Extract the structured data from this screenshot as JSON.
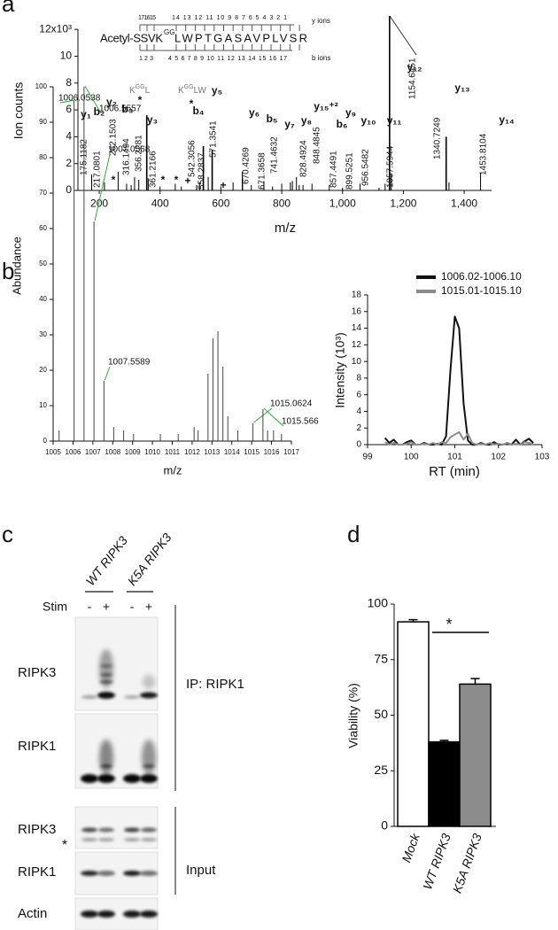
{
  "panel_labels": [
    "a",
    "b",
    "c",
    "d"
  ],
  "chart_data": [
    {
      "type": "stem",
      "xlabel": "m/z",
      "ylabel": "Ion counts",
      "xlim": [
        130,
        1490
      ],
      "ylim": [
        0,
        13
      ],
      "xticks": [
        200,
        400,
        600,
        800,
        {
          "value": 1000,
          "label": "1,000"
        },
        {
          "value": 1200,
          "label": "1,200"
        },
        {
          "value": 1400,
          "label": "1,400"
        }
      ],
      "yticks": [
        0,
        2,
        4,
        6,
        8,
        10,
        {
          "value": 12,
          "label": "12x10³"
        }
      ],
      "color": "#000000",
      "series": [
        {
          "labeled": true,
          "x": [
            175.1182,
            217.0801,
            262.1503,
            316.1494,
            356.2281,
            361.2166,
            542.3056,
            558.2837,
            571.3541,
            670.4269,
            671.3658,
            741.4632,
            828.4924,
            848.4845,
            857.4491,
            899.5251,
            956.5482,
            1057.5944,
            1154.6451,
            1340.7249,
            1453.8104
          ],
          "values": [
            1.2,
            0.6,
            1.4,
            1.0,
            5.6,
            0.9,
            3.3,
            1.0,
            3.0,
            1.4,
            0.9,
            0.7,
            0.6,
            1.0,
            0.4,
            0.5,
            0.4,
            0.5,
            13,
            4.0,
            1.3
          ]
        },
        {
          "labeled": false,
          "x": [
            290,
            305,
            330,
            400,
            450,
            470,
            520,
            530,
            600,
            640,
            700,
            770,
            800,
            835,
            870,
            1000,
            1120,
            1140,
            1160,
            1350
          ],
          "values": [
            0.5,
            0.4,
            0.8,
            0.3,
            0.5,
            0.3,
            0.4,
            0.6,
            0.3,
            0.6,
            0.4,
            0.3,
            0.5,
            0.7,
            0.4,
            0.2,
            0.2,
            0.5,
            1.2,
            0.6
          ]
        }
      ],
      "ion_labels": [
        "y₁",
        "b₂",
        "y₂",
        "b₃",
        "y₃",
        "b₄",
        "y₅",
        "y₆",
        "b₅",
        "y₇",
        "y₈",
        "y₁₅⁺²",
        "b₆",
        "y₉",
        "y₁₀",
        "y₁₁",
        "y₁₂",
        "y₁₃",
        "y₁₄"
      ],
      "markers": [
        "*",
        "*",
        "*",
        "+",
        "+",
        "*",
        "*"
      ],
      "site_labels": [
        [
          "K",
          "GG",
          "L"
        ],
        [
          "K",
          "GG",
          "LW"
        ]
      ],
      "peptide": {
        "prefix": "Acetyl-SSVK",
        "modification": "GG",
        "suffix": "LWPTGASAVPLVSR",
        "y_numbers": [
          "171615",
          "14 13 12 11 10 9 8 7 6 5 4 3 2 1"
        ],
        "b_numbers": [
          "1 2 3",
          "4 5 6 7 8 9 10 11 12 13 14 15 16 17"
        ],
        "y_label": "y ions",
        "b_label": "b ions"
      }
    },
    {
      "type": "stem",
      "xlabel": "m/z",
      "ylabel": "Abundance",
      "xlim": [
        1005,
        1017
      ],
      "ylim": [
        0,
        100
      ],
      "xticks": [
        1005,
        1006,
        1007,
        1008,
        1009,
        1010,
        1011,
        1012,
        1013,
        1014,
        1015,
        1016,
        1017
      ],
      "yticks": [
        0,
        10,
        20,
        30,
        40,
        50,
        60,
        70,
        80,
        90,
        100
      ],
      "color": "#444444",
      "label_line_color": "#2eaa3a",
      "series": [
        {
          "labeled": true,
          "x": [
            1006.0538,
            1006.5557,
            1007.0568,
            1007.5589,
            1015.0624,
            1015.566
          ],
          "values": [
            96,
            100,
            62,
            17,
            5,
            9
          ]
        },
        {
          "labeled": false,
          "x": [
            1005.3,
            1008.05,
            1008.55,
            1009.05,
            1010.4,
            1011.3,
            1012.1,
            1012.3,
            1012.8,
            1013.05,
            1013.3,
            1013.55,
            1013.8,
            1014.3,
            1015.8,
            1016.1,
            1016.5
          ],
          "values": [
            3,
            4,
            3,
            2,
            2,
            2,
            4,
            3,
            19,
            29,
            31,
            21,
            7,
            3,
            3,
            3,
            2
          ]
        }
      ]
    },
    {
      "type": "line",
      "xlabel": "RT (min)",
      "ylabel": "Intensity (10³)",
      "xlim": [
        99,
        103
      ],
      "ylim": [
        0,
        18
      ],
      "xticks": [
        99,
        100,
        101,
        102,
        103
      ],
      "yticks": [
        0,
        2,
        4,
        6,
        8,
        10,
        12,
        14,
        16,
        18
      ],
      "legend": "top",
      "x": [
        99.4,
        99.5,
        99.6,
        99.7,
        99.8,
        99.9,
        100.0,
        100.1,
        100.2,
        100.3,
        100.4,
        100.5,
        100.6,
        100.7,
        100.8,
        100.9,
        101.0,
        101.1,
        101.2,
        101.3,
        101.4,
        101.5,
        101.6,
        101.7,
        101.8,
        101.9,
        102.0,
        102.1,
        102.2,
        102.3,
        102.4,
        102.5,
        102.6,
        102.7,
        102.8
      ],
      "series": [
        {
          "name": "1006.02-1006.10",
          "color": "#111111",
          "values": [
            0.8,
            0.2,
            0.6,
            0,
            0,
            0.3,
            0.5,
            0,
            0,
            0.2,
            0,
            0,
            0.1,
            0,
            1.0,
            9.0,
            15.4,
            14.0,
            5.0,
            0.5,
            0,
            0,
            0.2,
            0,
            0,
            0.3,
            0,
            0,
            0.2,
            0,
            0.6,
            0,
            0.4,
            0.7,
            0.2
          ]
        },
        {
          "name": "1015.01-1015.10",
          "color": "#8c8c8c",
          "values": [
            0.3,
            0,
            0.2,
            0,
            0,
            0.1,
            0.3,
            0,
            0,
            0.1,
            0,
            0.2,
            0,
            0.3,
            0.2,
            0.9,
            1.2,
            1.5,
            0.6,
            1.3,
            0.2,
            0,
            0.1,
            0,
            0.2,
            0,
            0.1,
            0,
            0.2,
            0,
            0.1,
            0,
            0.3,
            0.2,
            0
          ]
        }
      ]
    },
    {
      "type": "bar",
      "ylabel": "Viability (%)",
      "categories": [
        "Mock",
        "WT RIPK3",
        "K5A RIPK3"
      ],
      "values": [
        92,
        38,
        64
      ],
      "errors": [
        1,
        0.7,
        2.5
      ],
      "colors": [
        "#ffffff",
        "#000000",
        "#8c8c8c"
      ],
      "ylim": [
        0,
        100
      ],
      "yticks": [
        0,
        25,
        50,
        75,
        100
      ],
      "significance": "*"
    }
  ],
  "blot": {
    "conditions": [
      "WT RIPK3",
      "K5A RIPK3"
    ],
    "stim_label": "Stim",
    "stim": [
      "-",
      "+",
      "-",
      "+"
    ],
    "rows": [
      "RIPK3",
      "RIPK1",
      "RIPK3",
      "RIPK1",
      "Actin"
    ],
    "nonspecific": "*",
    "groups": [
      "IP: RIPK1",
      "Input"
    ]
  }
}
